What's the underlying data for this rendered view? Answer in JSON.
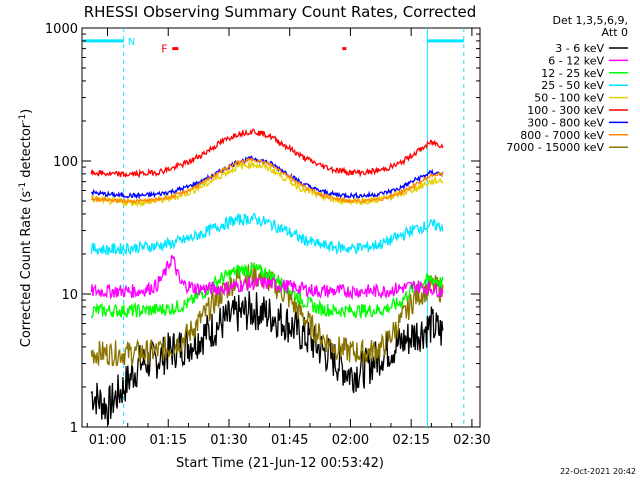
{
  "chart_data": {
    "type": "line",
    "title": "RHESSI Observing Summary Count Rates, Corrected",
    "xlabel": "Start Time (21-Jun-12 00:53:42)",
    "ylabel": "Corrected Count Rate (s",
    "ylabel_sup1": "-1",
    "ylabel_mid": " detector",
    "ylabel_sup2": "-1",
    "ylabel_end": ")",
    "yscale": "log",
    "ylim": [
      1,
      1000
    ],
    "xlim_minutes": [
      53.7,
      152
    ],
    "x_ticks": [
      {
        "minute": 60,
        "label": "01:00"
      },
      {
        "minute": 75,
        "label": "01:15"
      },
      {
        "minute": 90,
        "label": "01:30"
      },
      {
        "minute": 105,
        "label": "01:45"
      },
      {
        "minute": 120,
        "label": "02:00"
      },
      {
        "minute": 135,
        "label": "02:15"
      },
      {
        "minute": 150,
        "label": "02:30"
      }
    ],
    "y_ticks": [
      {
        "value": 1,
        "label": "1"
      },
      {
        "value": 10,
        "label": "10"
      },
      {
        "value": 100,
        "label": "100"
      },
      {
        "value": 1000,
        "label": "1000"
      }
    ],
    "legend_header": [
      "Det 1,3,5,6,9,",
      "Att 0"
    ],
    "legend_placement": "right",
    "timestamp": "22-Oct-2021 20:42",
    "flags": [
      {
        "label": "N",
        "color": "#00e5ff"
      },
      {
        "label": "F",
        "color": "#ff0000"
      }
    ],
    "night_bars": [
      {
        "start": 54,
        "end": 64,
        "value": 800
      },
      {
        "start": 139,
        "end": 148,
        "value": 800
      }
    ],
    "dashed_lines_minutes": [
      64,
      148
    ],
    "solid_lines_minutes": [
      139
    ],
    "flare_marks": [
      {
        "start": 76,
        "end": 77.5,
        "value": 700
      },
      {
        "start": 118,
        "end": 119,
        "value": 700
      }
    ],
    "series": [
      {
        "name": "3 - 6 keV",
        "color": "#000000",
        "x": [
          56,
          60,
          64,
          68,
          72,
          76,
          80,
          84,
          88,
          92,
          96,
          100,
          104,
          108,
          112,
          116,
          120,
          124,
          128,
          132,
          136,
          140,
          143
        ],
        "y": [
          1.8,
          1.4,
          2.0,
          3.0,
          3.2,
          3.8,
          4.2,
          5.0,
          6.0,
          7.0,
          7.6,
          7.0,
          6.2,
          5.0,
          4.0,
          3.2,
          2.5,
          2.8,
          3.6,
          4.2,
          5.0,
          5.8,
          5.0
        ]
      },
      {
        "name": "6 - 12 keV",
        "color": "#ff00ff",
        "x": [
          56,
          60,
          64,
          68,
          72,
          74,
          76,
          78,
          82,
          88,
          92,
          96,
          100,
          104,
          108,
          112,
          116,
          120,
          124,
          128,
          132,
          136,
          140,
          143
        ],
        "y": [
          10.5,
          10.5,
          10.5,
          10.5,
          11.5,
          14,
          19,
          12,
          11,
          11,
          11.5,
          12,
          12,
          11.5,
          11,
          10.5,
          10.5,
          10.5,
          10.5,
          10.5,
          11,
          11.5,
          11,
          10.5
        ]
      },
      {
        "name": "12 - 25 keV",
        "color": "#00ff00",
        "x": [
          56,
          60,
          64,
          68,
          72,
          76,
          80,
          84,
          88,
          92,
          96,
          100,
          104,
          108,
          112,
          116,
          120,
          124,
          128,
          132,
          136,
          140,
          143
        ],
        "y": [
          7.5,
          7.5,
          7.5,
          7.5,
          7.6,
          7.8,
          8.5,
          10.5,
          13.0,
          15.0,
          15.5,
          14.0,
          11.5,
          9.0,
          7.8,
          7.5,
          7.5,
          7.5,
          7.6,
          8.5,
          11.5,
          13.0,
          12.0
        ]
      },
      {
        "name": "25 - 50 keV",
        "color": "#00e5ff",
        "x": [
          56,
          60,
          64,
          68,
          72,
          76,
          80,
          84,
          88,
          92,
          96,
          100,
          104,
          108,
          112,
          116,
          120,
          124,
          128,
          132,
          136,
          140,
          143
        ],
        "y": [
          22,
          21.5,
          22,
          22.5,
          23,
          24,
          26,
          29,
          33,
          36,
          37,
          34,
          30,
          26,
          23.5,
          22.5,
          22,
          22.5,
          24,
          27,
          31,
          33,
          32
        ]
      },
      {
        "name": "50 - 100 keV",
        "color": "#e5d000",
        "x": [
          56,
          60,
          64,
          68,
          72,
          76,
          80,
          84,
          88,
          92,
          96,
          100,
          104,
          108,
          112,
          116,
          120,
          124,
          128,
          132,
          136,
          140,
          143
        ],
        "y": [
          52,
          50,
          49,
          49,
          50,
          53,
          58,
          66,
          78,
          90,
          95,
          88,
          74,
          62,
          55,
          51,
          50,
          50,
          52,
          56,
          62,
          70,
          72
        ]
      },
      {
        "name": "100 - 300 keV",
        "color": "#ff0000",
        "x": [
          56,
          60,
          64,
          68,
          72,
          76,
          80,
          84,
          88,
          92,
          96,
          100,
          104,
          108,
          112,
          116,
          120,
          124,
          128,
          132,
          136,
          140,
          143
        ],
        "y": [
          82,
          80,
          79,
          80,
          82,
          88,
          98,
          115,
          138,
          160,
          168,
          155,
          130,
          108,
          94,
          86,
          82,
          82,
          86,
          95,
          115,
          138,
          130
        ]
      },
      {
        "name": "300 - 800 keV",
        "color": "#0000ff",
        "x": [
          56,
          60,
          64,
          68,
          72,
          76,
          80,
          84,
          88,
          92,
          96,
          100,
          104,
          108,
          112,
          116,
          120,
          124,
          128,
          132,
          136,
          140,
          143
        ],
        "y": [
          58,
          56,
          55,
          55,
          56,
          59,
          64,
          72,
          84,
          98,
          105,
          97,
          82,
          68,
          60,
          56,
          55,
          55,
          57,
          62,
          72,
          82,
          80
        ]
      },
      {
        "name": "800 - 7000 keV",
        "color": "#ff8800",
        "x": [
          56,
          60,
          64,
          68,
          72,
          76,
          80,
          84,
          88,
          92,
          96,
          100,
          104,
          108,
          112,
          116,
          120,
          124,
          128,
          132,
          136,
          140,
          143
        ],
        "y": [
          52,
          51,
          50,
          50,
          51,
          54,
          60,
          70,
          84,
          97,
          103,
          95,
          80,
          66,
          57,
          52,
          50,
          50,
          52,
          57,
          66,
          78,
          80
        ]
      },
      {
        "name": "7000 - 15000 keV",
        "color": "#8b7500",
        "x": [
          56,
          60,
          64,
          68,
          72,
          76,
          80,
          84,
          88,
          92,
          96,
          100,
          104,
          108,
          112,
          116,
          120,
          124,
          128,
          132,
          136,
          140,
          143
        ],
        "y": [
          3.6,
          3.6,
          3.6,
          3.6,
          3.7,
          4.0,
          5.0,
          7.0,
          10.0,
          13.0,
          14.0,
          12.5,
          10.0,
          7.0,
          5.0,
          4.0,
          3.7,
          3.6,
          4.0,
          6.0,
          9.5,
          11.5,
          10.5
        ]
      }
    ]
  }
}
